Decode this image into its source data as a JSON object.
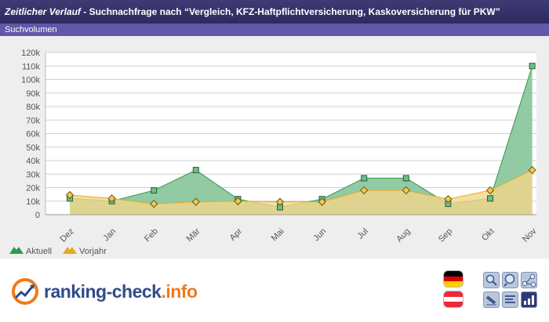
{
  "header": {
    "title_prefix": "Zeitlicher Verlauf - ",
    "title_main": "Suchnachfrage nach “Vergleich, KFZ-Haftpflichtversicherung, Kaskoversicherung für PKW”",
    "subtitle": "Suchvolumen"
  },
  "chart_data": {
    "type": "area",
    "categories": [
      "Dez",
      "Jan",
      "Feb",
      "Mär",
      "Apr",
      "Mai",
      "Jun",
      "Jul",
      "Aug",
      "Sep",
      "Okt",
      "Nov"
    ],
    "series": [
      {
        "name": "Aktuell",
        "values": [
          12000,
          10000,
          18000,
          33000,
          11500,
          5500,
          11500,
          27000,
          27000,
          8000,
          12000,
          110000
        ],
        "color": "#2f9a4c",
        "fill": "#8cc79f",
        "marker": "square"
      },
      {
        "name": "Vorjahr",
        "values": [
          14500,
          12000,
          8000,
          9500,
          10000,
          9500,
          9500,
          18000,
          18000,
          11500,
          18000,
          33000
        ],
        "color": "#e7aa1f",
        "fill": "#f3d68a",
        "marker": "diamond"
      }
    ],
    "yticks": [
      "0",
      "10k",
      "20k",
      "30k",
      "40k",
      "50k",
      "60k",
      "70k",
      "80k",
      "90k",
      "100k",
      "110k",
      "120k"
    ],
    "ylim": [
      0,
      120000
    ],
    "grid": true,
    "legend_position": "bottom-left"
  },
  "brand": {
    "part1": "ranking-check",
    "part2": ".info"
  },
  "flags": [
    {
      "country": "Germany",
      "colors": [
        "#000000",
        "#dd0000",
        "#ffce00"
      ]
    },
    {
      "country": "Austria",
      "colors": [
        "#ed2939",
        "#ffffff",
        "#ed2939"
      ]
    }
  ],
  "tool_icons": [
    "search-icon",
    "magnify-icon",
    "network-icon",
    "pencil-icon",
    "text-lines-icon",
    "bar-chart-icon"
  ]
}
